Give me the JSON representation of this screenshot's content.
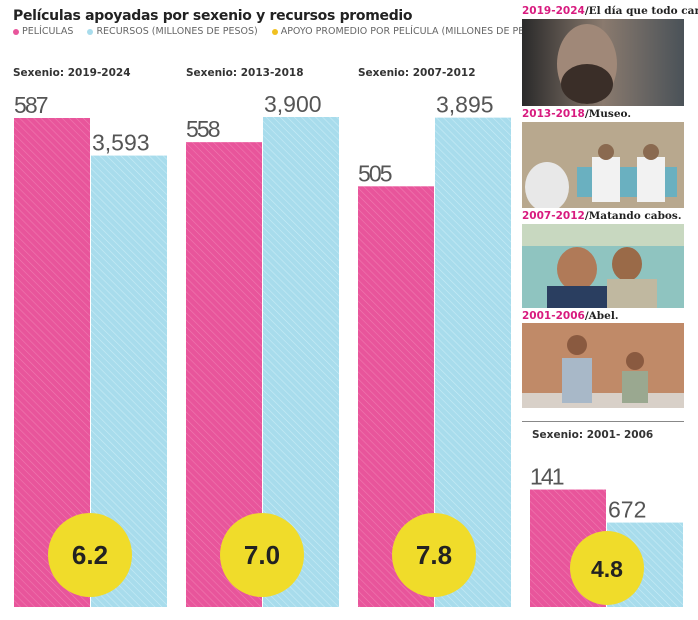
{
  "title": "Películas apoyadas por sexenio y recursos promedio",
  "legend": [
    {
      "label": "PELÍCULAS",
      "color": "#e8559b"
    },
    {
      "label": "RECURSOS (MILLONES DE PESOS)",
      "color": "#a8dcec"
    },
    {
      "label": "APOYO PROMEDIO POR PELÍCULA (MILLONES DE PESOS)",
      "color": "#f0dc2a"
    }
  ],
  "chart_data": {
    "type": "bar",
    "categories": [
      "Sexenio: 2019-2024",
      "Sexenio: 2013-2018",
      "Sexenio: 2007-2012",
      "Sexenio: 2001- 2006"
    ],
    "series": [
      {
        "name": "PELÍCULAS",
        "values": [
          587,
          558,
          505,
          141
        ],
        "color": "#e8559b"
      },
      {
        "name": "RECURSOS (MILLONES DE PESOS)",
        "values": [
          3593,
          3900,
          3895,
          672
        ],
        "color": "#a8dcec"
      },
      {
        "name": "APOYO PROMEDIO POR PELÍCULA (MILLONES DE PESOS)",
        "values": [
          6.2,
          7.0,
          7.8,
          4.8
        ],
        "color": "#f0dc2a"
      }
    ],
    "value_labels": {
      "peliculas": [
        "587",
        "558",
        "505",
        "141"
      ],
      "recursos": [
        "3,593",
        "3,900",
        "3,895",
        "672"
      ],
      "apoyo": [
        "6.2",
        "7.0",
        "7.8",
        "4.8"
      ]
    },
    "grid": false
  },
  "photos": [
    {
      "period": "2019-2024",
      "film": "El día que todo cambió."
    },
    {
      "period": "2013-2018",
      "film": "Museo."
    },
    {
      "period": "2007-2012",
      "film": "Matando cabos."
    },
    {
      "period": "2001-2006",
      "film": "Abel."
    }
  ]
}
